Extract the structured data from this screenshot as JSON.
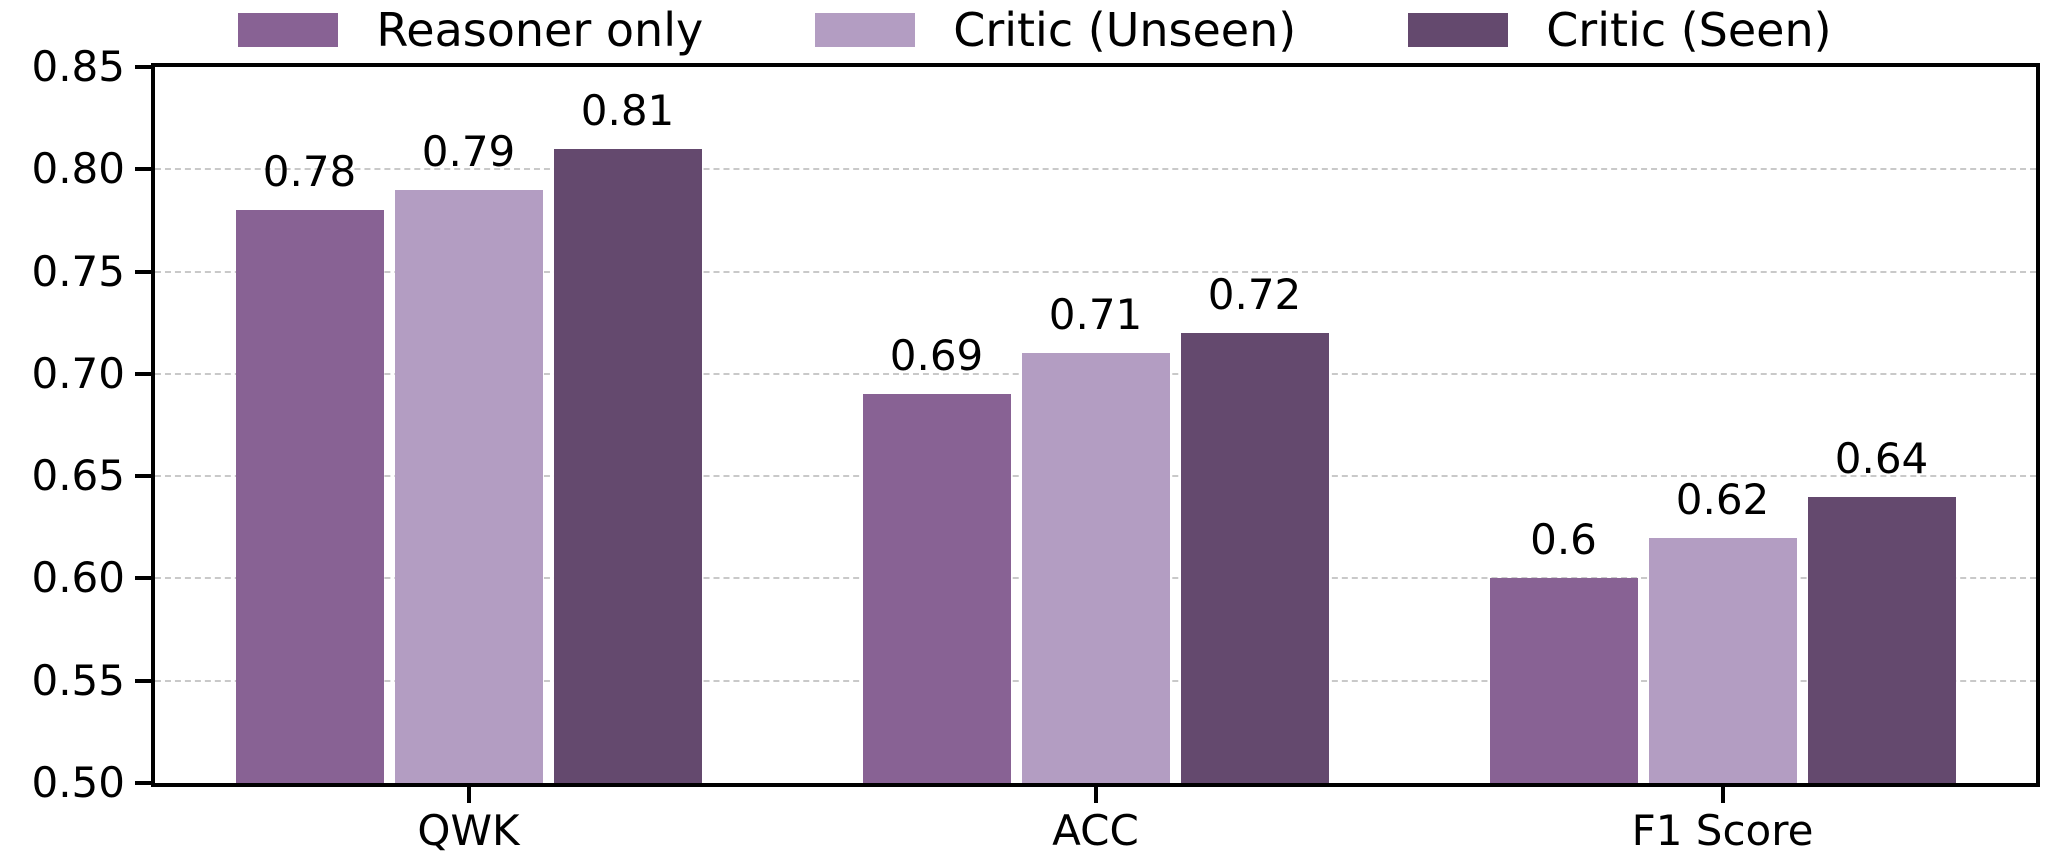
{
  "figure": {
    "background": "#ffffff",
    "text_color": "#000000",
    "axis_color": "#000000",
    "gridline_color": "#c9c9c9"
  },
  "chart_data": {
    "type": "bar",
    "title": "",
    "xlabel": "",
    "ylabel": "",
    "categories": [
      "QWK",
      "ACC",
      "F1 Score"
    ],
    "series": [
      {
        "name": "Reasoner only",
        "color": "#886294",
        "values": [
          0.78,
          0.69,
          0.6
        ],
        "value_labels": [
          "0.78",
          "0.69",
          "0.6"
        ]
      },
      {
        "name": "Critic (Unseen)",
        "color": "#b39dc2",
        "values": [
          0.79,
          0.71,
          0.62
        ],
        "value_labels": [
          "0.79",
          "0.71",
          "0.62"
        ]
      },
      {
        "name": "Critic (Seen)",
        "color": "#64496e",
        "values": [
          0.81,
          0.72,
          0.64
        ],
        "value_labels": [
          "0.81",
          "0.72",
          "0.64"
        ]
      }
    ],
    "ylim": [
      0.5,
      0.85
    ],
    "yticks": [
      "0.50",
      "0.55",
      "0.60",
      "0.65",
      "0.70",
      "0.75",
      "0.80",
      "0.85"
    ],
    "grid": "horizontal-dashed",
    "legend_position": "top",
    "legend_columns": 3
  }
}
